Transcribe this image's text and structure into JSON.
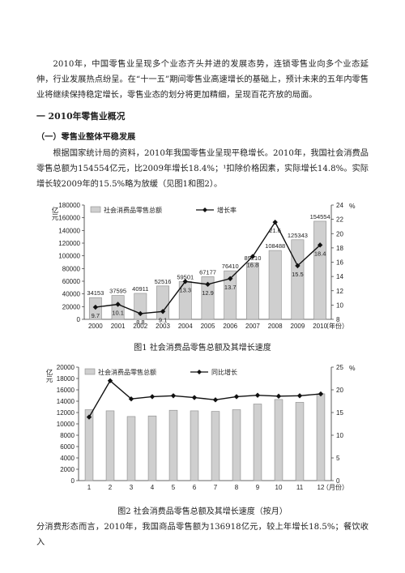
{
  "document": {
    "intro_paragraph": "2010年，中国零售业呈现多个业态齐头并进的发展态势，连锁零售业向多个业态延伸，行业发展热点纷呈。在“十一五”期间零售业高速增长的基础上，预计未来的五年内零售业将继续保持稳定增长，零售业态的划分将更加精细，呈现百花齐放的局面。",
    "heading_1": "一 2010年零售业概况",
    "heading_2": "（一）零售业整体平稳发展",
    "paragraph_2": "根据国家统计局的资料，2010年我国零售业呈现平稳增长。2010年，我国社会消费品零售总额为154554亿元，比2009年增长18.4%；¹扣除价格因素，实际增长14.8%。实际增长较2009年的15.5%略为放缓（见图1和图2）。",
    "figure1_caption": "图1 社会消费品零售总额及其增长速度",
    "figure2_caption": "图2 社会消费品零售总额及其增长速度（按月）",
    "closing_paragraph": "分消费形态而言，2010年，我国商品零售额为136918亿元，较上年增长18.5%；餐饮收入"
  },
  "chart_data": [
    {
      "type": "bar",
      "categories": [
        "2000",
        "2001",
        "2002",
        "2003",
        "2004",
        "2005",
        "2006",
        "2007",
        "2008",
        "2009",
        "2010"
      ],
      "series": [
        {
          "name": "社会消费品零售总额",
          "type": "bar",
          "axis": "left",
          "values": [
            34153,
            37595,
            40911,
            52516,
            59501,
            67177,
            76410,
            89210,
            108488,
            125343,
            154554
          ]
        },
        {
          "name": "增长率",
          "type": "line",
          "axis": "right",
          "values": [
            9.7,
            10.1,
            8.8,
            9.1,
            13.3,
            12.9,
            13.7,
            16.8,
            21.6,
            15.5,
            18.4
          ]
        }
      ],
      "ylabel": "亿元",
      "y2label": "%",
      "xunit": "（年份）",
      "ylim": [
        0,
        180000
      ],
      "yticks": [
        0,
        20000,
        40000,
        60000,
        80000,
        100000,
        120000,
        140000,
        160000,
        180000
      ],
      "y2lim": [
        8,
        24
      ],
      "y2ticks": [
        8,
        10,
        12,
        14,
        16,
        18,
        20,
        22,
        24
      ],
      "legend_position": "top-left",
      "grid": false
    },
    {
      "type": "bar",
      "categories": [
        "1",
        "2",
        "3",
        "4",
        "5",
        "6",
        "7",
        "8",
        "9",
        "10",
        "11",
        "12"
      ],
      "series": [
        {
          "name": "社会消费品零售总额",
          "type": "bar",
          "axis": "left",
          "values": [
            12500,
            12300,
            11300,
            11400,
            12400,
            12300,
            12200,
            12500,
            13500,
            14300,
            13800,
            15300
          ]
        },
        {
          "name": "同比增长",
          "type": "line",
          "axis": "right",
          "values": [
            14,
            22,
            18,
            18.5,
            18.7,
            18.3,
            17.8,
            18.5,
            18.8,
            18.6,
            18.7,
            19.1
          ]
        }
      ],
      "ylabel": "亿元",
      "y2label": "%",
      "xunit": "（月份）",
      "ylim": [
        0,
        20000
      ],
      "yticks": [
        0,
        2000,
        4000,
        6000,
        8000,
        10000,
        12000,
        14000,
        16000,
        18000,
        20000
      ],
      "y2lim": [
        0,
        25
      ],
      "y2ticks": [
        0,
        5,
        10,
        15,
        20,
        25
      ],
      "legend_position": "top-left",
      "grid": false
    }
  ]
}
